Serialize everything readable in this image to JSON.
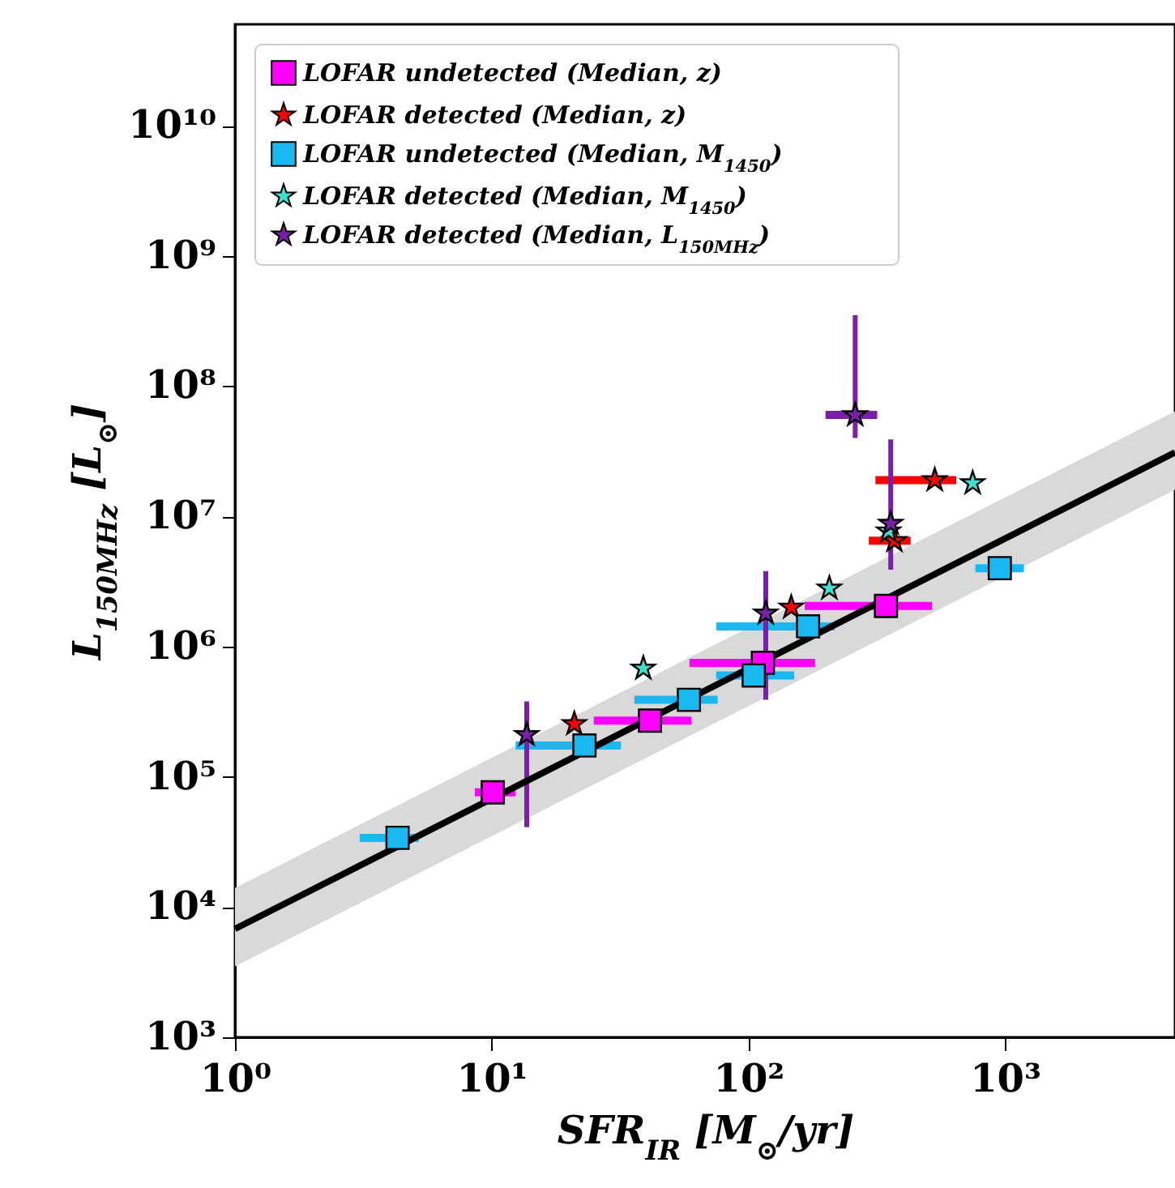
{
  "chart_data": {
    "type": "scatter",
    "xlabel": "SFR$_{IR}$ [M$_{⊙}$/yr]",
    "ylabel": "L$_{150MHz}$ [L$_{⊙}$]",
    "log": "xy",
    "grid": false,
    "legend": "top left",
    "xlim": [
      1,
      4600
    ],
    "ylim": [
      1000,
      60000000000
    ],
    "xticks": [
      {
        "value": 1,
        "label": "10⁰"
      },
      {
        "value": 10,
        "label": "10¹"
      },
      {
        "value": 100,
        "label": "10²"
      },
      {
        "value": 1000,
        "label": "10³"
      }
    ],
    "yticks": [
      {
        "value": 1000,
        "label": "10³"
      },
      {
        "value": 10000,
        "label": "10⁴"
      },
      {
        "value": 100000,
        "label": "10⁵"
      },
      {
        "value": 1000000,
        "label": "10⁶"
      },
      {
        "value": 10000000,
        "label": "10⁷"
      },
      {
        "value": 100000000,
        "label": "10⁸"
      },
      {
        "value": 1000000000,
        "label": "10⁹"
      },
      {
        "value": 10000000000,
        "label": "10¹⁰"
      }
    ],
    "series": [
      {
        "type": "line",
        "color": "#000000",
        "x": [
          1,
          4600
        ],
        "values": [
          6800,
          31000000
        ],
        "lower": [
          3500,
          16000000
        ],
        "upper": [
          14000,
          64000000
        ]
      },
      {
        "name": "LOFAR undetected (Median, z)",
        "color": "#ff00ff",
        "marker": "square",
        "x": [
          10.1,
          41.4,
          114,
          344
        ],
        "values": [
          76000,
          270000,
          750000,
          2050000
        ],
        "xerrors": [
          [
            8.6,
            12.4
          ],
          [
            25,
            60
          ],
          [
            59,
            182
          ],
          [
            166,
            520
          ]
        ]
      },
      {
        "name": "LOFAR detected (Median, z)",
        "color": "#ff0000",
        "marker": "star",
        "x": [
          21,
          147,
          371,
          533
        ],
        "values": [
          255000,
          2000000,
          6500000,
          19000000
        ],
        "xerrors": [
          null,
          null,
          [
            295,
            429
          ],
          [
            313,
            646
          ]
        ]
      },
      {
        "name": "LOFAR undetected (Median, M$_{1450}$)",
        "color": "#1ab8f0",
        "marker": "square",
        "x": [
          4.3,
          23,
          58.7,
          105,
          171,
          955
        ],
        "values": [
          34000,
          174000,
          390000,
          600000,
          1430000,
          4000000
        ],
        "xerrors": [
          [
            3.06,
            5.2
          ],
          [
            12.4,
            31.9
          ],
          [
            36,
            76
          ],
          [
            75,
            151
          ],
          [
            75,
            217
          ],
          [
            767,
            1186
          ]
        ]
      },
      {
        "name": "LOFAR detected (Median, M$_{1450}$)",
        "color": "#40e0d0",
        "marker": "star",
        "x": [
          39,
          207,
          352,
          749
        ],
        "values": [
          680000,
          2800000,
          7700000,
          18000000
        ]
      },
      {
        "name": "LOFAR detected (Median, L$_{150MHz}$)",
        "color": "#7a1fa8",
        "marker": "star",
        "x": [
          13.7,
          117,
          261,
          359
        ],
        "values": [
          210000,
          1800000,
          60000000,
          8800000
        ],
        "errors": [
          [
            41000,
            380000
          ],
          [
            390000,
            3800000
          ],
          [
            40000000,
            350000000
          ],
          [
            3900000,
            39000000
          ]
        ],
        "xerrors": [
          null,
          null,
          [
            200,
            318
          ],
          null
        ]
      }
    ]
  }
}
